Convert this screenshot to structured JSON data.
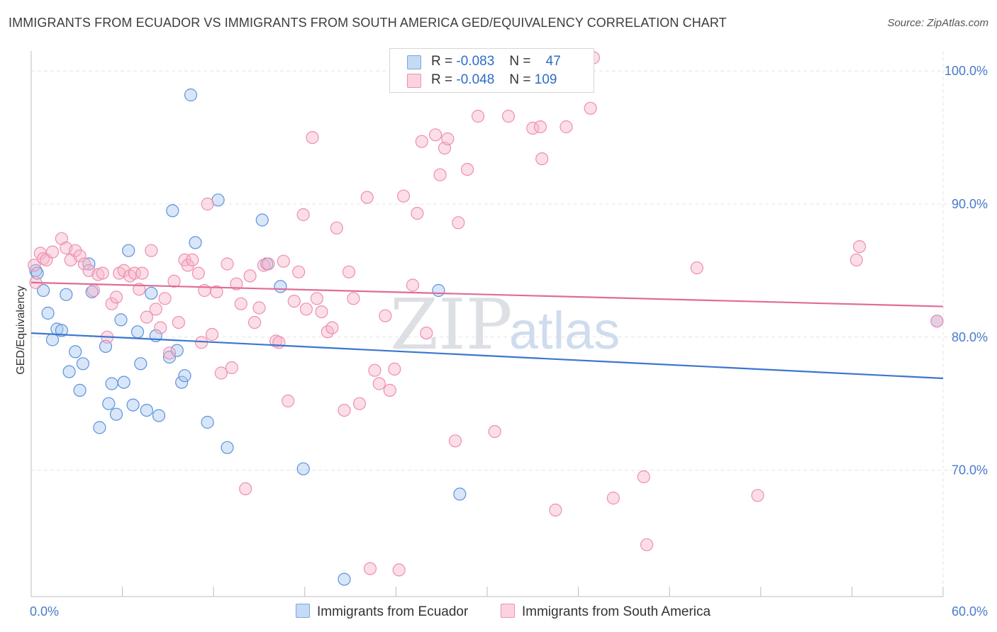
{
  "header": {
    "title": "IMMIGRANTS FROM ECUADOR VS IMMIGRANTS FROM SOUTH AMERICA GED/EQUIVALENCY CORRELATION CHART",
    "source": "Source: ZipAtlas.com"
  },
  "watermark": {
    "zip": "ZIP",
    "atlas": "atlas"
  },
  "legend": {
    "rows": [
      {
        "r_label": "R =",
        "r_value": "-0.083",
        "n_label": "N =",
        "n_value": "47",
        "color": "#a9c8f0"
      },
      {
        "r_label": "R =",
        "r_value": "-0.048",
        "n_label": "N =",
        "n_value": "109",
        "color": "#f7b6c9"
      }
    ]
  },
  "bottom_legend": {
    "items": [
      {
        "label": "Immigrants from Ecuador",
        "color": "#a9c8f0"
      },
      {
        "label": "Immigrants from South America",
        "color": "#f7b6c9"
      }
    ]
  },
  "chart_data": {
    "type": "scatter",
    "title": "IMMIGRANTS FROM ECUADOR VS IMMIGRANTS FROM SOUTH AMERICA GED/EQUIVALENCY CORRELATION CHART",
    "xlabel": "",
    "ylabel": "GED/Equivalency",
    "xlim": [
      0,
      60
    ],
    "ylim": [
      60.5,
      101.5
    ],
    "x_tick_labels": [
      "0.0%",
      "60.0%"
    ],
    "y_ticks": [
      70,
      80,
      90,
      100
    ],
    "y_tick_labels": [
      "70.0%",
      "80.0%",
      "90.0%",
      "100.0%"
    ],
    "grid": true,
    "legend_position": "top-center",
    "series": [
      {
        "name": "Immigrants from Ecuador",
        "color": "#5b93dd",
        "fill": "#a9c8f0",
        "trend": {
          "x": [
            0,
            60
          ],
          "y": [
            80.3,
            76.9
          ],
          "color": "#3a77cf"
        },
        "points": [
          [
            0.3,
            85.0
          ],
          [
            0.4,
            84.8
          ],
          [
            0.8,
            83.5
          ],
          [
            1.1,
            81.8
          ],
          [
            1.4,
            79.8
          ],
          [
            1.7,
            80.6
          ],
          [
            2.0,
            80.5
          ],
          [
            2.3,
            83.2
          ],
          [
            2.5,
            77.4
          ],
          [
            2.9,
            78.9
          ],
          [
            3.2,
            76.0
          ],
          [
            3.4,
            78.0
          ],
          [
            3.8,
            85.5
          ],
          [
            4.0,
            83.4
          ],
          [
            4.5,
            73.2
          ],
          [
            4.9,
            79.3
          ],
          [
            5.1,
            75.0
          ],
          [
            5.3,
            76.5
          ],
          [
            5.6,
            74.2
          ],
          [
            5.9,
            81.3
          ],
          [
            6.1,
            76.6
          ],
          [
            6.4,
            86.5
          ],
          [
            6.7,
            74.9
          ],
          [
            7.0,
            80.4
          ],
          [
            7.2,
            78.0
          ],
          [
            7.6,
            74.5
          ],
          [
            7.9,
            83.3
          ],
          [
            8.2,
            80.1
          ],
          [
            8.4,
            74.1
          ],
          [
            9.1,
            78.5
          ],
          [
            9.3,
            89.5
          ],
          [
            9.6,
            79.0
          ],
          [
            9.9,
            76.6
          ],
          [
            10.1,
            77.1
          ],
          [
            10.5,
            98.2
          ],
          [
            10.8,
            87.1
          ],
          [
            11.6,
            73.6
          ],
          [
            12.3,
            90.3
          ],
          [
            12.9,
            71.7
          ],
          [
            15.2,
            88.8
          ],
          [
            15.5,
            85.5
          ],
          [
            16.4,
            83.8
          ],
          [
            17.9,
            70.1
          ],
          [
            20.6,
            61.8
          ],
          [
            26.8,
            83.5
          ],
          [
            28.2,
            68.2
          ],
          [
            59.6,
            81.2
          ]
        ]
      },
      {
        "name": "Immigrants from South America",
        "color": "#ee8fae",
        "fill": "#f7b6c9",
        "trend": {
          "x": [
            0,
            60
          ],
          "y": [
            84.1,
            82.3
          ],
          "color": "#e06c95"
        },
        "points": [
          [
            0.2,
            85.4
          ],
          [
            0.3,
            84.1
          ],
          [
            0.6,
            86.3
          ],
          [
            0.8,
            85.9
          ],
          [
            1.0,
            85.8
          ],
          [
            1.4,
            86.4
          ],
          [
            2.0,
            87.4
          ],
          [
            2.3,
            86.7
          ],
          [
            2.6,
            85.8
          ],
          [
            2.9,
            86.5
          ],
          [
            3.2,
            86.1
          ],
          [
            3.5,
            85.5
          ],
          [
            3.8,
            85.0
          ],
          [
            4.1,
            83.5
          ],
          [
            4.4,
            84.7
          ],
          [
            4.7,
            84.8
          ],
          [
            5.0,
            80.0
          ],
          [
            5.3,
            82.5
          ],
          [
            5.6,
            83.0
          ],
          [
            5.8,
            84.8
          ],
          [
            6.1,
            85.0
          ],
          [
            6.5,
            84.6
          ],
          [
            6.8,
            84.8
          ],
          [
            7.1,
            83.6
          ],
          [
            7.3,
            84.8
          ],
          [
            7.6,
            81.5
          ],
          [
            7.9,
            86.5
          ],
          [
            8.2,
            82.1
          ],
          [
            8.5,
            80.7
          ],
          [
            8.8,
            82.9
          ],
          [
            9.1,
            78.8
          ],
          [
            9.4,
            84.2
          ],
          [
            9.7,
            81.1
          ],
          [
            10.1,
            85.8
          ],
          [
            10.3,
            85.4
          ],
          [
            10.6,
            85.8
          ],
          [
            11.0,
            84.8
          ],
          [
            11.2,
            79.6
          ],
          [
            11.4,
            83.5
          ],
          [
            11.6,
            90.0
          ],
          [
            11.9,
            80.2
          ],
          [
            12.2,
            83.4
          ],
          [
            12.5,
            77.3
          ],
          [
            12.9,
            85.5
          ],
          [
            13.2,
            77.7
          ],
          [
            13.5,
            84.0
          ],
          [
            13.8,
            82.5
          ],
          [
            14.1,
            68.6
          ],
          [
            14.4,
            84.6
          ],
          [
            14.7,
            81.1
          ],
          [
            15.0,
            82.2
          ],
          [
            15.3,
            85.4
          ],
          [
            15.6,
            85.5
          ],
          [
            16.1,
            79.7
          ],
          [
            16.3,
            79.6
          ],
          [
            16.6,
            85.7
          ],
          [
            16.9,
            75.2
          ],
          [
            17.3,
            82.7
          ],
          [
            17.6,
            84.9
          ],
          [
            17.9,
            89.2
          ],
          [
            18.1,
            82.1
          ],
          [
            18.5,
            95.0
          ],
          [
            18.8,
            82.9
          ],
          [
            19.1,
            81.9
          ],
          [
            19.5,
            80.4
          ],
          [
            19.8,
            80.7
          ],
          [
            20.1,
            88.2
          ],
          [
            20.6,
            74.5
          ],
          [
            20.9,
            84.9
          ],
          [
            21.2,
            82.9
          ],
          [
            21.6,
            75.0
          ],
          [
            22.1,
            90.5
          ],
          [
            22.3,
            62.6
          ],
          [
            22.6,
            77.5
          ],
          [
            22.9,
            76.5
          ],
          [
            23.3,
            81.6
          ],
          [
            23.6,
            76.0
          ],
          [
            23.9,
            77.6
          ],
          [
            24.2,
            62.5
          ],
          [
            24.5,
            90.6
          ],
          [
            25.1,
            83.9
          ],
          [
            25.4,
            89.3
          ],
          [
            25.7,
            94.7
          ],
          [
            26.0,
            80.3
          ],
          [
            26.6,
            95.2
          ],
          [
            26.9,
            92.2
          ],
          [
            27.2,
            94.2
          ],
          [
            27.4,
            94.9
          ],
          [
            27.9,
            72.2
          ],
          [
            28.1,
            88.6
          ],
          [
            28.7,
            92.6
          ],
          [
            29.4,
            96.6
          ],
          [
            30.5,
            72.9
          ],
          [
            31.4,
            96.6
          ],
          [
            33.0,
            95.7
          ],
          [
            33.5,
            95.8
          ],
          [
            33.6,
            93.4
          ],
          [
            34.5,
            67.0
          ],
          [
            35.2,
            95.8
          ],
          [
            36.8,
            97.2
          ],
          [
            37.0,
            101.0
          ],
          [
            38.3,
            67.9
          ],
          [
            40.3,
            69.5
          ],
          [
            40.5,
            64.4
          ],
          [
            43.8,
            85.2
          ],
          [
            47.8,
            68.1
          ],
          [
            54.3,
            85.8
          ],
          [
            54.5,
            86.8
          ],
          [
            59.6,
            81.2
          ]
        ]
      }
    ]
  }
}
